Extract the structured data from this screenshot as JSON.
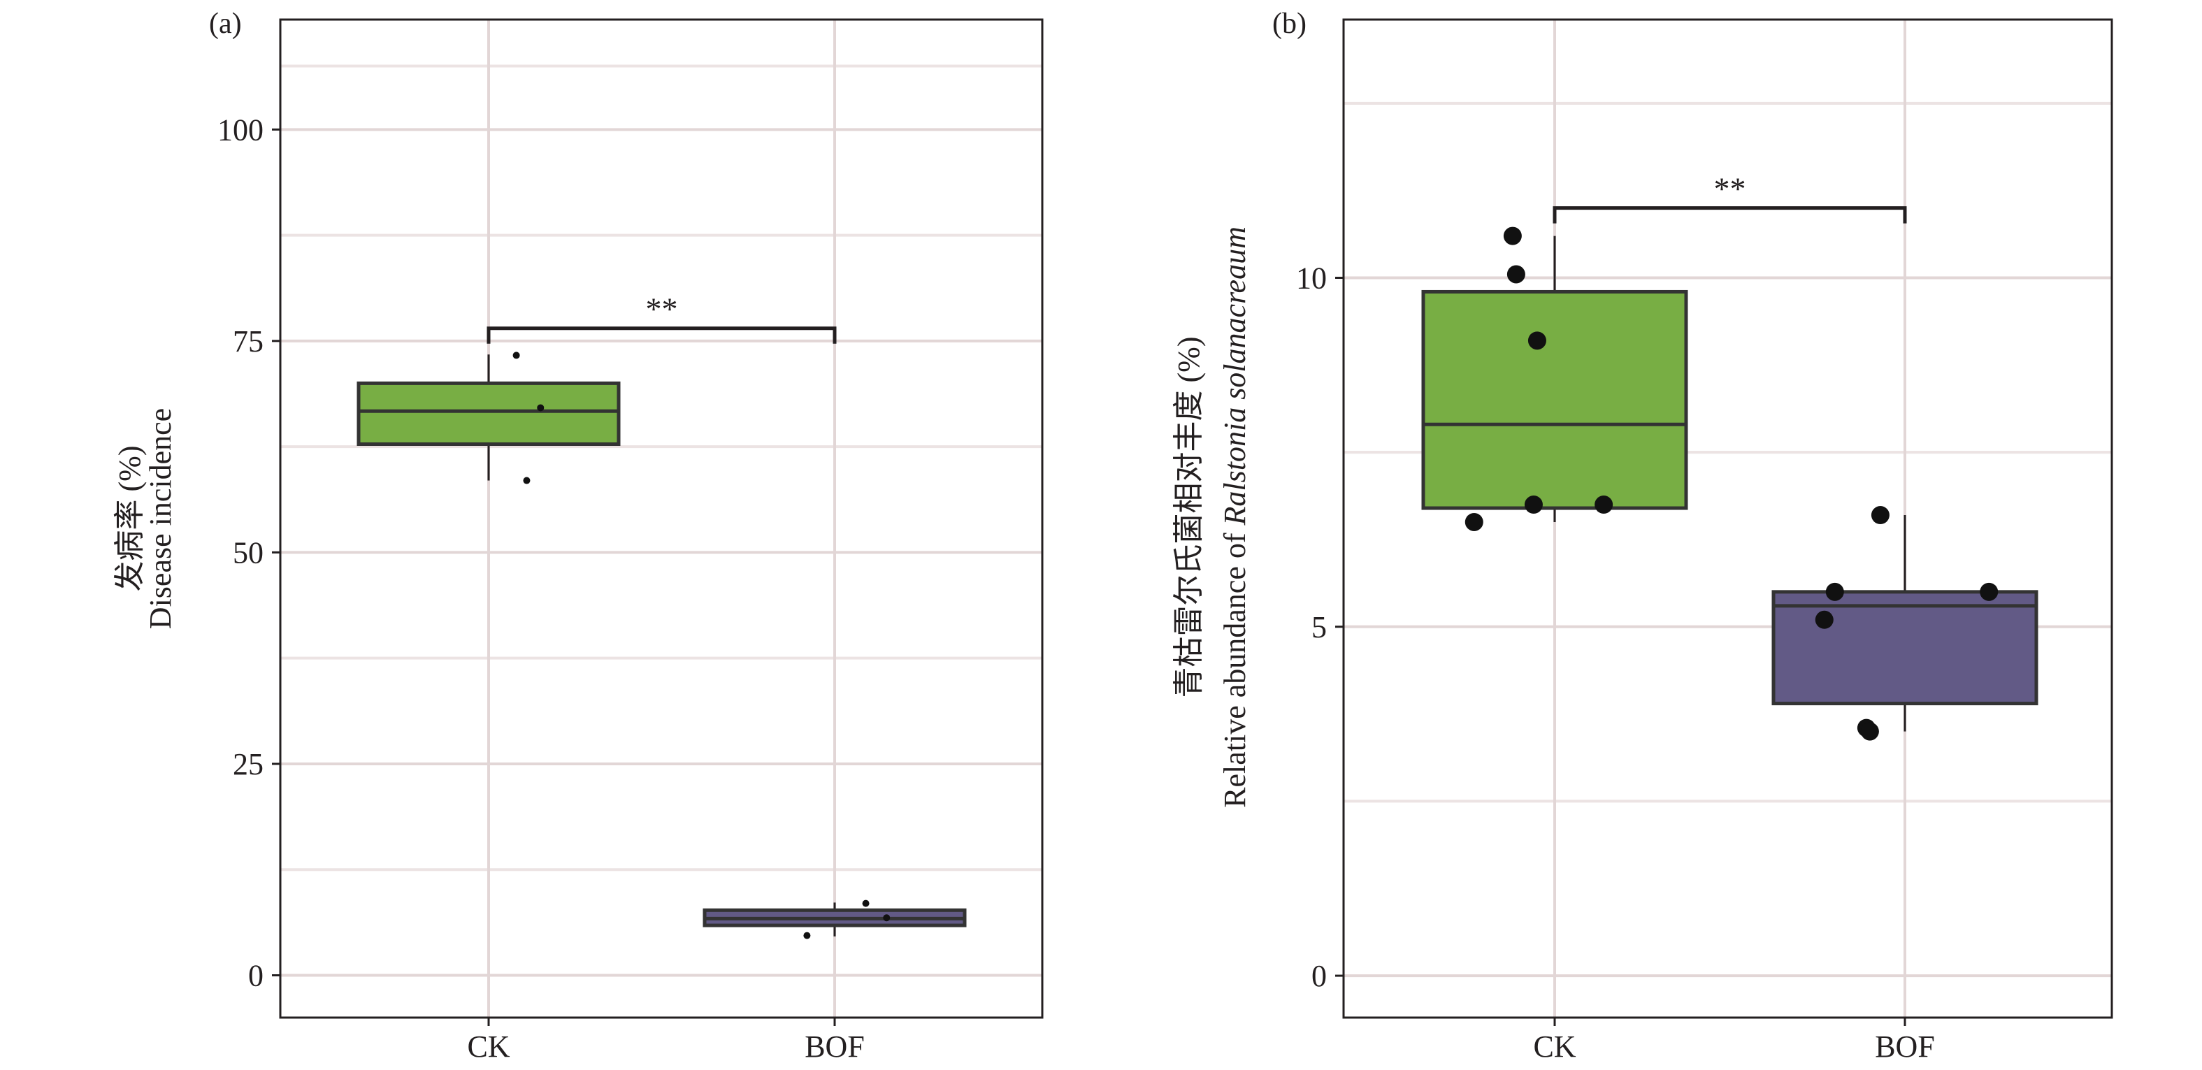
{
  "chart_data": [
    {
      "type": "box",
      "panel_label": "(a)",
      "ylabel_lines": [
        "发病率 (%)",
        "Disease incidence"
      ],
      "ylim": [
        -5,
        113
      ],
      "yticks": [
        0,
        25,
        50,
        75,
        100
      ],
      "yticks_labels": [
        "0",
        "25",
        "50",
        "75",
        "100"
      ],
      "minor_grid": [
        12.5,
        37.5,
        62.5,
        87.5,
        107.5
      ],
      "grid": true,
      "point_radius": 5,
      "categories": [
        "CK",
        "BOF"
      ],
      "colors": {
        "CK": "#78ae44",
        "BOF": "#625a86"
      },
      "boxes": [
        {
          "category": "CK",
          "whisker_low": 58.5,
          "q1": 62.8,
          "median": 66.7,
          "q3": 70.0,
          "whisker_high": 73.4
        },
        {
          "category": "BOF",
          "whisker_low": 4.6,
          "q1": 5.9,
          "median": 6.7,
          "q3": 7.7,
          "whisker_high": 8.6
        }
      ],
      "points": [
        {
          "category": "CK",
          "values": [
            73.3,
            67.1,
            58.5
          ],
          "offsets": [
            0.08,
            0.15,
            0.11
          ]
        },
        {
          "category": "BOF",
          "values": [
            8.5,
            6.8,
            4.7
          ],
          "offsets": [
            0.09,
            0.15,
            -0.08
          ]
        }
      ],
      "significance": {
        "label": "**",
        "from": "CK",
        "to": "BOF",
        "y": 76.5
      }
    },
    {
      "type": "box",
      "panel_label": "(b)",
      "ylabel_lines": [
        "青枯雷尔氏菌相对丰度 (%)",
        "Relative abundance of ",
        "Ralstonia solanacreaum"
      ],
      "ylim": [
        -0.6,
        13.7
      ],
      "yticks": [
        0,
        5,
        10
      ],
      "yticks_labels": [
        "0",
        "5",
        "10"
      ],
      "minor_grid": [
        2.5,
        7.5,
        12.5
      ],
      "grid": true,
      "point_radius": 13,
      "categories": [
        "CK",
        "BOF"
      ],
      "colors": {
        "CK": "#78ae44",
        "BOF": "#625a86"
      },
      "boxes": [
        {
          "category": "CK",
          "whisker_low": 6.5,
          "q1": 6.7,
          "median": 7.9,
          "q3": 9.8,
          "whisker_high": 10.6
        },
        {
          "category": "BOF",
          "whisker_low": 3.5,
          "q1": 3.9,
          "median": 5.3,
          "q3": 5.5,
          "whisker_high": 6.6
        }
      ],
      "points": [
        {
          "category": "CK",
          "values": [
            10.6,
            10.05,
            9.1,
            6.75,
            6.75,
            6.5
          ],
          "offsets": [
            -0.12,
            -0.11,
            -0.05,
            -0.06,
            0.14,
            -0.23
          ]
        },
        {
          "category": "BOF",
          "values": [
            6.6,
            5.5,
            5.5,
            5.1,
            3.55,
            3.5
          ],
          "offsets": [
            -0.07,
            -0.2,
            0.24,
            -0.23,
            -0.11,
            -0.1
          ]
        }
      ],
      "significance": {
        "label": "**",
        "from": "CK",
        "to": "BOF",
        "y": 11.0
      }
    }
  ]
}
